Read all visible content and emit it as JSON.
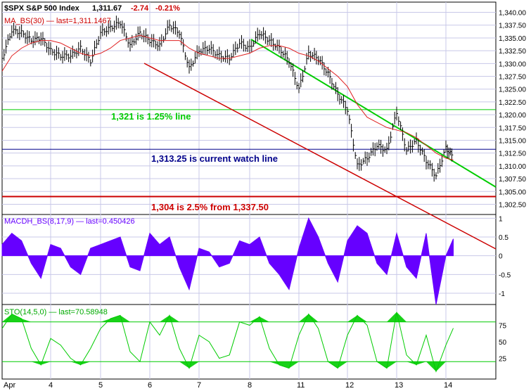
{
  "header": {
    "symbol_title": "$SPX S&P 500 Index",
    "last": "1,311.67",
    "change": "-2.74",
    "change_pct": "-0.21%",
    "ma_label": "MA_BS(30) — last=1,311.1467"
  },
  "annotations": {
    "green_line_note": "1,321 is 1.25% line",
    "blue_line_note": "1,313.25 is current watch line",
    "red_line_note": "1,304 is 2.5% from 1,337.50"
  },
  "macd_label": "MACDH_BS(8,17,9) — last=0.450426",
  "sto_label": "STO(14,5,0) — last=70.58948",
  "colors": {
    "price": "#000000",
    "ma": "#e02020",
    "green_line": "#00cc00",
    "blue_line": "#00008b",
    "red_line": "#cc0000",
    "macd": "#6600ff",
    "sto": "#00cc00",
    "grid": "#c8c8e8"
  },
  "chart_data": [
    {
      "type": "line",
      "title": "$SPX S&P 500 Index",
      "x_tick_labels": [
        "Apr",
        "4",
        "5",
        "6",
        "7",
        "8",
        "11",
        "12",
        "13",
        "14"
      ],
      "y_tick_labels": [
        "1,340.00",
        "1,337.50",
        "1,335.00",
        "1,332.50",
        "1,330.00",
        "1,327.50",
        "1,325.00",
        "1,322.50",
        "1,320.00",
        "1,317.50",
        "1,315.00",
        "1,312.50",
        "1,310.00",
        "1,307.50",
        "1,305.00",
        "1,302.50"
      ],
      "ylim": [
        1300.5,
        1342.0
      ],
      "horizontal_lines": [
        {
          "value": 1321.0,
          "label": "1,321 is 1.25% line",
          "color": "#00cc00"
        },
        {
          "value": 1313.25,
          "label": "1,313.25 is current watch line",
          "color": "#00008b"
        },
        {
          "value": 1304.0,
          "label": "1,304 is 2.5% from 1,337.50",
          "color": "#cc0000"
        }
      ],
      "series": [
        {
          "name": "$SPX S&P 500 Index",
          "x": [
            0,
            0.2,
            0.4,
            0.6,
            0.8,
            1.0,
            1.2,
            1.4,
            1.6,
            1.8,
            2.0,
            2.2,
            2.4,
            2.6,
            2.8,
            3.0,
            3.2,
            3.4,
            3.6,
            3.8,
            4.0,
            4.2,
            4.4,
            4.6,
            4.8,
            5.0,
            5.2,
            5.4,
            5.6,
            5.8,
            6.0,
            6.2,
            6.4,
            6.6,
            6.8,
            7.0,
            7.2,
            7.4,
            7.6,
            7.8,
            8.0,
            8.2,
            8.4,
            8.6,
            8.8,
            9.0,
            9.15
          ],
          "values": [
            1331.0,
            1336.5,
            1336.0,
            1334.5,
            1335.0,
            1332.5,
            1331.5,
            1331.5,
            1333.0,
            1330.5,
            1336.0,
            1337.0,
            1338.0,
            1333.5,
            1336.0,
            1334.5,
            1333.5,
            1337.5,
            1336.0,
            1329.0,
            1332.5,
            1333.0,
            1331.5,
            1331.0,
            1334.0,
            1333.0,
            1336.0,
            1334.5,
            1333.0,
            1330.5,
            1325.0,
            1332.0,
            1331.0,
            1328.0,
            1324.0,
            1321.0,
            1310.0,
            1311.5,
            1314.0,
            1313.0,
            1320.5,
            1313.0,
            1315.0,
            1311.0,
            1308.0,
            1313.5,
            1311.67
          ]
        },
        {
          "name": "MA_BS(30)",
          "x": [
            0,
            0.2,
            0.4,
            0.6,
            0.8,
            1.0,
            1.2,
            1.4,
            1.6,
            1.8,
            2.0,
            2.2,
            2.4,
            2.6,
            2.8,
            3.0,
            3.2,
            3.4,
            3.6,
            3.8,
            4.0,
            4.2,
            4.4,
            4.6,
            4.8,
            5.0,
            5.2,
            5.4,
            5.6,
            5.8,
            6.0,
            6.2,
            6.4,
            6.6,
            6.8,
            7.0,
            7.2,
            7.4,
            7.6,
            7.8,
            8.0,
            8.2,
            8.4,
            8.6,
            8.8,
            9.0,
            9.15
          ],
          "values": [
            1328.5,
            1331.5,
            1333.0,
            1334.0,
            1334.5,
            1334.5,
            1334.0,
            1333.0,
            1332.0,
            1331.5,
            1332.0,
            1333.0,
            1334.5,
            1335.0,
            1335.5,
            1335.0,
            1334.5,
            1334.5,
            1334.5,
            1333.0,
            1332.0,
            1331.5,
            1331.0,
            1331.0,
            1331.5,
            1332.0,
            1333.0,
            1333.5,
            1333.5,
            1333.0,
            1332.0,
            1331.5,
            1330.5,
            1329.0,
            1327.5,
            1325.5,
            1322.0,
            1319.5,
            1318.5,
            1317.5,
            1317.0,
            1316.5,
            1315.5,
            1314.0,
            1312.5,
            1311.5,
            1311.15
          ]
        }
      ]
    },
    {
      "type": "area",
      "title": "MACDH_BS(8,17,9) — last=0.450426",
      "x_tick_labels": [
        "Apr",
        "4",
        "5",
        "6",
        "7",
        "8",
        "11",
        "12",
        "13",
        "14"
      ],
      "y_tick_labels": [
        "1",
        "0.5",
        "0",
        "-0.5",
        "-1"
      ],
      "ylim": [
        -1.3,
        1.1
      ],
      "series": [
        {
          "name": "MACDH_BS(8,17,9)",
          "x": [
            0,
            0.2,
            0.4,
            0.6,
            0.8,
            1.0,
            1.2,
            1.4,
            1.6,
            1.8,
            2.0,
            2.2,
            2.4,
            2.6,
            2.8,
            3.0,
            3.2,
            3.4,
            3.6,
            3.8,
            4.0,
            4.2,
            4.4,
            4.6,
            4.8,
            5.0,
            5.2,
            5.4,
            5.6,
            5.8,
            6.0,
            6.2,
            6.4,
            6.6,
            6.8,
            7.0,
            7.2,
            7.4,
            7.6,
            7.8,
            8.0,
            8.2,
            8.4,
            8.6,
            8.8,
            9.0,
            9.15
          ],
          "values": [
            0.3,
            0.6,
            0.4,
            -0.2,
            -0.6,
            0.3,
            0.2,
            -0.3,
            -0.5,
            0.2,
            0.3,
            0.4,
            0.5,
            -0.3,
            -0.4,
            0.6,
            0.3,
            0.5,
            -0.3,
            -0.9,
            0.2,
            0.1,
            -0.3,
            -0.2,
            0.4,
            0.3,
            0.5,
            -0.2,
            -0.5,
            -0.9,
            0.2,
            1.0,
            0.5,
            -0.2,
            -0.7,
            0.4,
            0.8,
            0.6,
            -0.2,
            -0.5,
            0.6,
            -0.3,
            -0.6,
            0.6,
            -1.3,
            0.0,
            0.45
          ]
        }
      ]
    },
    {
      "type": "line",
      "title": "STO(14,5,0) — last=70.58948",
      "x_tick_labels": [
        "Apr",
        "4",
        "5",
        "6",
        "7",
        "8",
        "11",
        "12",
        "13",
        "14"
      ],
      "y_tick_labels": [
        "75",
        "50",
        "25"
      ],
      "ylim": [
        0,
        100
      ],
      "horizontal_lines": [
        {
          "value": 80,
          "color": "#00cc00"
        },
        {
          "value": 20,
          "color": "#00cc00"
        }
      ],
      "series": [
        {
          "name": "STO(14,5,0)",
          "x": [
            0,
            0.2,
            0.4,
            0.6,
            0.8,
            1.0,
            1.2,
            1.4,
            1.6,
            1.8,
            2.0,
            2.2,
            2.4,
            2.6,
            2.8,
            3.0,
            3.2,
            3.4,
            3.6,
            3.8,
            4.0,
            4.2,
            4.4,
            4.6,
            4.8,
            5.0,
            5.2,
            5.4,
            5.6,
            5.8,
            6.0,
            6.2,
            6.4,
            6.6,
            6.8,
            7.0,
            7.2,
            7.4,
            7.6,
            7.8,
            8.0,
            8.2,
            8.4,
            8.6,
            8.8,
            9.0,
            9.15
          ],
          "values": [
            70,
            92,
            85,
            40,
            15,
            55,
            45,
            25,
            15,
            40,
            70,
            85,
            90,
            35,
            20,
            80,
            60,
            90,
            40,
            10,
            60,
            50,
            25,
            30,
            80,
            75,
            88,
            40,
            15,
            10,
            60,
            92,
            70,
            20,
            10,
            60,
            90,
            75,
            20,
            10,
            95,
            30,
            15,
            60,
            5,
            45,
            70.59
          ]
        }
      ]
    }
  ]
}
